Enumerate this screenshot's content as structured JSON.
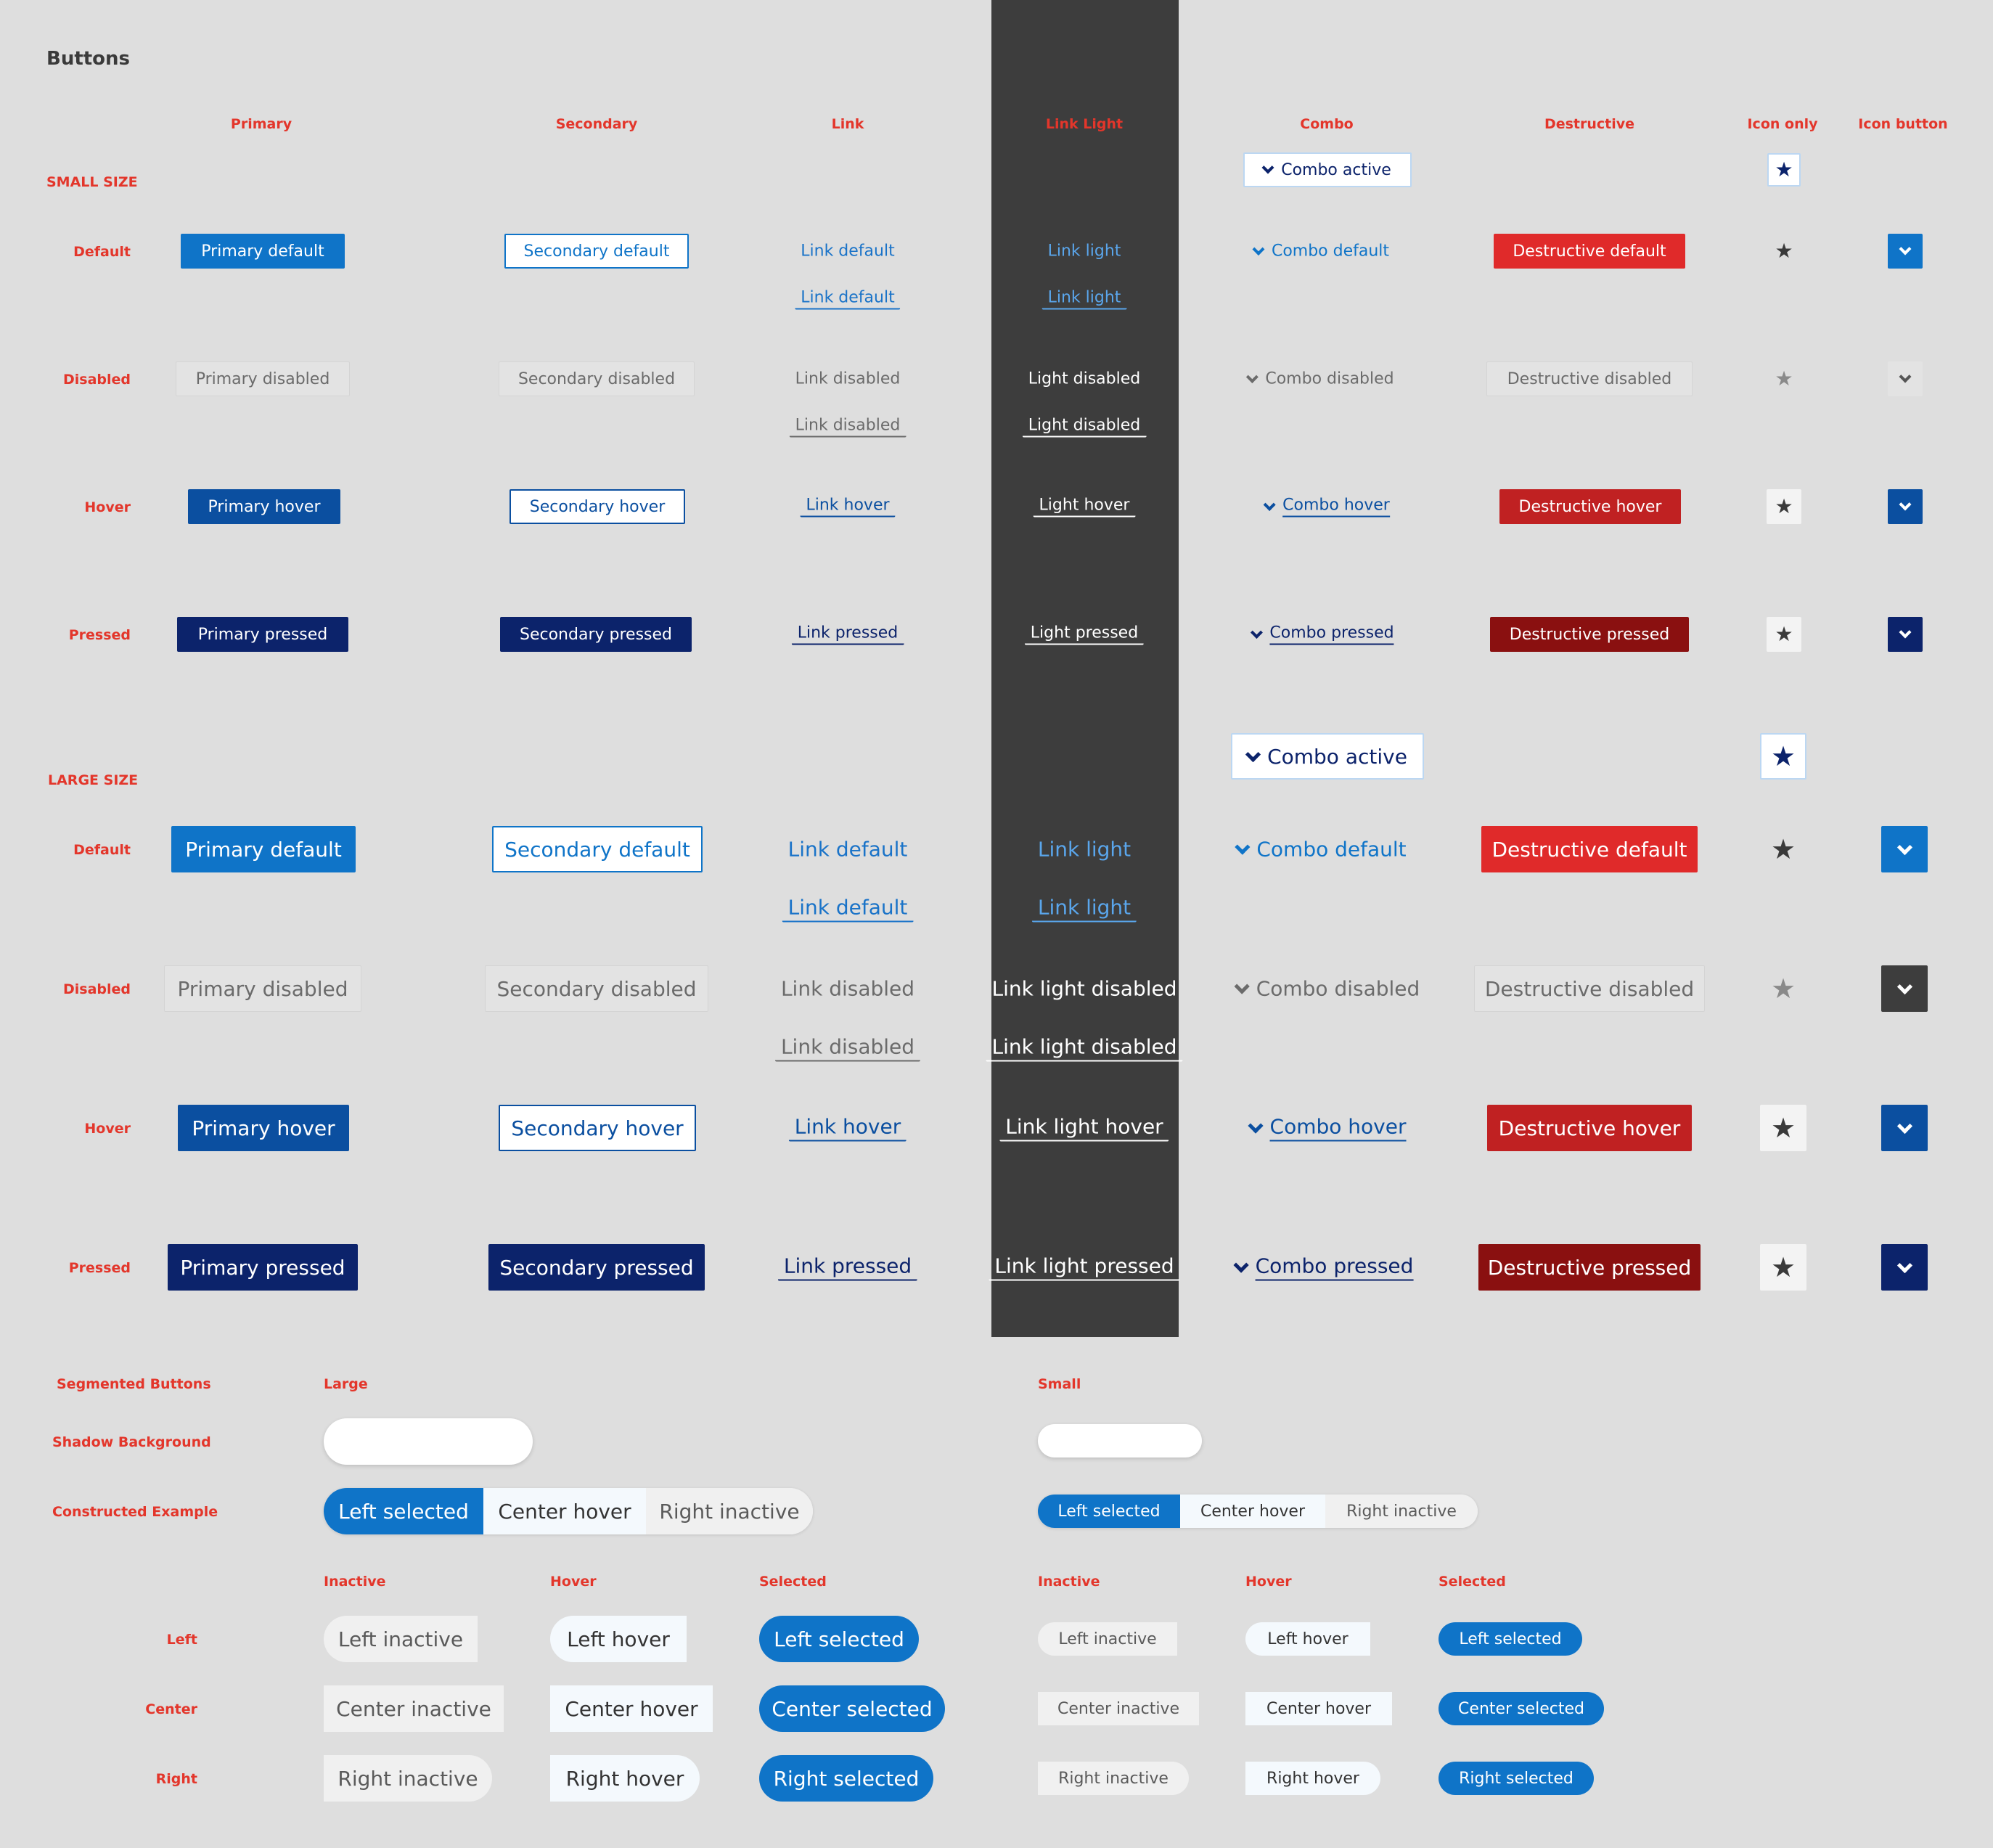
{
  "title": "Buttons",
  "columns": {
    "primary": "Primary",
    "secondary": "Secondary",
    "link": "Link",
    "link_light": "Link Light",
    "combo": "Combo",
    "destructive": "Destructive",
    "icon_only": "Icon only",
    "icon_button": "Icon button"
  },
  "sections": {
    "small": "SMALL SIZE",
    "large": "LARGE SIZE"
  },
  "rows": {
    "default": "Default",
    "disabled": "Disabled",
    "hover": "Hover",
    "pressed": "Pressed"
  },
  "icons": {
    "star": "star-icon",
    "chevron": "chevron-down-icon"
  },
  "colors": {
    "primary": "#0f74c8",
    "primary_hover": "#0b4fa0",
    "primary_pressed": "#0c236b",
    "destructive": "#e02a2a",
    "destructive_hover": "#c02122",
    "destructive_pressed": "#8a1010",
    "label": "#e3362b",
    "dark_panel": "#3d3d3d"
  },
  "small": {
    "combo_active": "Combo active",
    "primary": {
      "default": "Primary default",
      "disabled": "Primary disabled",
      "hover": "Primary hover",
      "pressed": "Primary pressed"
    },
    "secondary": {
      "default": "Secondary default",
      "disabled": "Secondary disabled",
      "hover": "Secondary hover",
      "pressed": "Secondary pressed"
    },
    "link": {
      "default": "Link default",
      "default_underline": "Link default",
      "disabled": "Link disabled",
      "disabled_underline": "Link disabled",
      "hover": "Link hover",
      "pressed": "Link pressed"
    },
    "link_light": {
      "default": "Link light",
      "default_underline": "Link light",
      "disabled": "Light disabled",
      "disabled_underline": "Light disabled",
      "hover": "Light hover",
      "pressed": "Light pressed"
    },
    "combo": {
      "default": "Combo default",
      "disabled": "Combo disabled",
      "hover": "Combo hover",
      "pressed": "Combo pressed"
    },
    "destructive": {
      "default": "Destructive default",
      "disabled": "Destructive disabled",
      "hover": "Destructive hover",
      "pressed": "Destructive pressed"
    }
  },
  "large": {
    "combo_active": "Combo active",
    "primary": {
      "default": "Primary default",
      "disabled": "Primary disabled",
      "hover": "Primary hover",
      "pressed": "Primary pressed"
    },
    "secondary": {
      "default": "Secondary default",
      "disabled": "Secondary disabled",
      "hover": "Secondary hover",
      "pressed": "Secondary pressed"
    },
    "link": {
      "default": "Link default",
      "default_underline": "Link default",
      "disabled": "Link disabled",
      "disabled_underline": "Link disabled",
      "hover": "Link hover",
      "pressed": "Link pressed"
    },
    "link_light": {
      "default": "Link light",
      "default_underline": "Link light",
      "disabled": "Link light disabled",
      "disabled_underline": "Link light disabled",
      "hover": "Link light hover",
      "pressed": "Link light pressed"
    },
    "combo": {
      "default": "Combo default",
      "disabled": "Combo disabled",
      "hover": "Combo hover",
      "pressed": "Combo pressed"
    },
    "destructive": {
      "default": "Destructive default",
      "disabled": "Destructive disabled",
      "hover": "Destructive hover",
      "pressed": "Destructive pressed"
    }
  },
  "segmented": {
    "title": "Segmented Buttons",
    "large": "Large",
    "small": "Small",
    "shadow_background": "Shadow Background",
    "constructed_example": "Constructed Example",
    "inactive": "Inactive",
    "hover": "Hover",
    "selected": "Selected",
    "left": "Left",
    "center": "Center",
    "right": "Right",
    "example": {
      "left": "Left selected",
      "center": "Center hover",
      "right": "Right inactive"
    },
    "states": {
      "left_inactive": "Left inactive",
      "left_hover": "Left hover",
      "left_selected": "Left selected",
      "center_inactive": "Center inactive",
      "center_hover": "Center hover",
      "center_selected": "Center selected",
      "right_inactive": "Right inactive",
      "right_hover": "Right hover",
      "right_selected": "Right selected"
    }
  }
}
